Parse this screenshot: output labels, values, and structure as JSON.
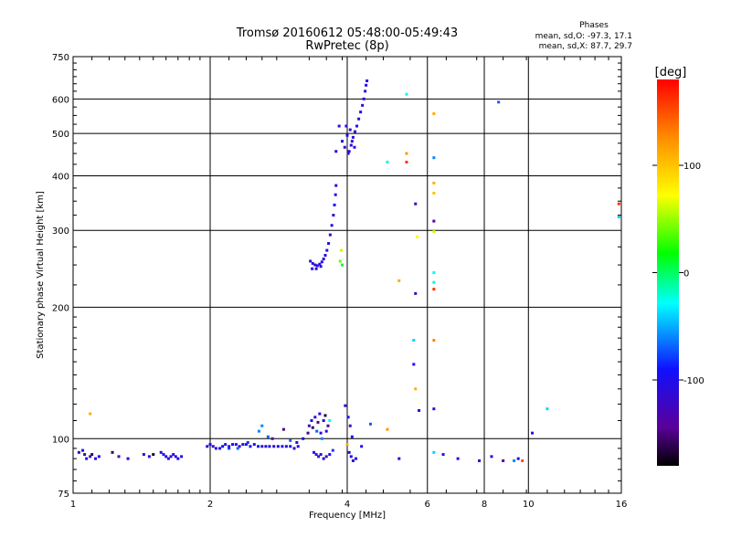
{
  "chart_data": {
    "type": "scatter",
    "title": "Tromsø 20160612 05:48:00-05:49:43",
    "subtitle": "RwPretec (8p)",
    "xlabel": "Frequency [MHz]",
    "ylabel": "Stationary phase Virtual Height [km]",
    "x_scale": "log",
    "y_scale": "log",
    "xlim": [
      1,
      16
    ],
    "ylim": [
      75,
      750
    ],
    "grid": true,
    "x_ticks": [
      "1",
      "2",
      "4",
      "6",
      "8",
      "10",
      "16"
    ],
    "x_tick_values": [
      1,
      2,
      4,
      6,
      8,
      10,
      16
    ],
    "y_ticks": [
      "75",
      "100",
      "200",
      "300",
      "400",
      "500",
      "600",
      "750"
    ],
    "y_tick_values": [
      75,
      100,
      200,
      300,
      400,
      500,
      600,
      750
    ],
    "stats": {
      "title": "Phases",
      "o_line": "mean, sd,O: -97.3, 17.1",
      "x_line": "mean, sd,X:  87.7, 29.7"
    },
    "colorbar": {
      "label": "[deg]",
      "min": -180,
      "max": 180,
      "ticks": [
        "100",
        "0",
        "-100"
      ],
      "tick_values": [
        100,
        0,
        -100
      ]
    },
    "points": [
      {
        "f": 1.03,
        "h": 93,
        "c": -110
      },
      {
        "f": 1.05,
        "h": 94,
        "c": -90
      },
      {
        "f": 1.06,
        "h": 92,
        "c": -150
      },
      {
        "f": 1.07,
        "h": 90,
        "c": -100
      },
      {
        "f": 1.09,
        "h": 91,
        "c": -120
      },
      {
        "f": 1.1,
        "h": 92,
        "c": -160
      },
      {
        "f": 1.12,
        "h": 90,
        "c": -110
      },
      {
        "f": 1.14,
        "h": 91,
        "c": -100
      },
      {
        "f": 1.09,
        "h": 114,
        "c": 110
      },
      {
        "f": 1.22,
        "h": 93,
        "c": -160
      },
      {
        "f": 1.26,
        "h": 91,
        "c": -130
      },
      {
        "f": 1.32,
        "h": 90,
        "c": -110
      },
      {
        "f": 1.43,
        "h": 92,
        "c": -120
      },
      {
        "f": 1.47,
        "h": 91,
        "c": -100
      },
      {
        "f": 1.5,
        "h": 92,
        "c": -170
      },
      {
        "f": 1.56,
        "h": 93,
        "c": -110
      },
      {
        "f": 1.58,
        "h": 92,
        "c": -90
      },
      {
        "f": 1.6,
        "h": 91,
        "c": -100
      },
      {
        "f": 1.62,
        "h": 90,
        "c": -120
      },
      {
        "f": 1.64,
        "h": 91,
        "c": -115
      },
      {
        "f": 1.66,
        "h": 92,
        "c": -105
      },
      {
        "f": 1.68,
        "h": 91,
        "c": -110
      },
      {
        "f": 1.7,
        "h": 90,
        "c": -95
      },
      {
        "f": 1.73,
        "h": 91,
        "c": -100
      },
      {
        "f": 1.97,
        "h": 96,
        "c": -110
      },
      {
        "f": 2.0,
        "h": 97,
        "c": -100
      },
      {
        "f": 2.03,
        "h": 96,
        "c": -120
      },
      {
        "f": 2.06,
        "h": 95,
        "c": -110
      },
      {
        "f": 2.1,
        "h": 95,
        "c": -100
      },
      {
        "f": 2.13,
        "h": 96,
        "c": -90
      },
      {
        "f": 2.16,
        "h": 97,
        "c": -110
      },
      {
        "f": 2.2,
        "h": 96,
        "c": -100
      },
      {
        "f": 2.24,
        "h": 97,
        "c": -110
      },
      {
        "f": 2.28,
        "h": 97,
        "c": -105
      },
      {
        "f": 2.32,
        "h": 96,
        "c": -100
      },
      {
        "f": 2.36,
        "h": 97,
        "c": -110
      },
      {
        "f": 2.4,
        "h": 97,
        "c": -100
      },
      {
        "f": 2.45,
        "h": 96,
        "c": -95
      },
      {
        "f": 2.5,
        "h": 97,
        "c": -110
      },
      {
        "f": 2.55,
        "h": 96,
        "c": -100
      },
      {
        "f": 2.6,
        "h": 96,
        "c": -110
      },
      {
        "f": 2.65,
        "h": 96,
        "c": -105
      },
      {
        "f": 2.7,
        "h": 96,
        "c": -100
      },
      {
        "f": 2.76,
        "h": 96,
        "c": -110
      },
      {
        "f": 2.82,
        "h": 96,
        "c": -100
      },
      {
        "f": 2.88,
        "h": 96,
        "c": -95
      },
      {
        "f": 2.94,
        "h": 96,
        "c": -110
      },
      {
        "f": 3.0,
        "h": 96,
        "c": -100
      },
      {
        "f": 3.06,
        "h": 95,
        "c": -110
      },
      {
        "f": 3.12,
        "h": 96,
        "c": -100
      },
      {
        "f": 2.2,
        "h": 95,
        "c": -80
      },
      {
        "f": 2.3,
        "h": 95,
        "c": -70
      },
      {
        "f": 2.42,
        "h": 98,
        "c": -80
      },
      {
        "f": 2.56,
        "h": 104,
        "c": -60
      },
      {
        "f": 2.6,
        "h": 107,
        "c": -60
      },
      {
        "f": 2.68,
        "h": 101,
        "c": -70
      },
      {
        "f": 2.74,
        "h": 100,
        "c": -140
      },
      {
        "f": 2.9,
        "h": 105,
        "c": -150
      },
      {
        "f": 3.0,
        "h": 99,
        "c": -70
      },
      {
        "f": 3.1,
        "h": 98,
        "c": -110
      },
      {
        "f": 3.2,
        "h": 100,
        "c": -90
      },
      {
        "f": 3.28,
        "h": 103,
        "c": -150
      },
      {
        "f": 3.3,
        "h": 107,
        "c": -120
      },
      {
        "f": 3.34,
        "h": 110,
        "c": -100
      },
      {
        "f": 3.36,
        "h": 106,
        "c": -160
      },
      {
        "f": 3.4,
        "h": 112,
        "c": -110
      },
      {
        "f": 3.43,
        "h": 104,
        "c": -70
      },
      {
        "f": 3.45,
        "h": 109,
        "c": -150
      },
      {
        "f": 3.48,
        "h": 114,
        "c": -100
      },
      {
        "f": 3.5,
        "h": 103,
        "c": -120
      },
      {
        "f": 3.52,
        "h": 100,
        "c": -60
      },
      {
        "f": 3.55,
        "h": 110,
        "c": -110
      },
      {
        "f": 3.58,
        "h": 113,
        "c": -170
      },
      {
        "f": 3.6,
        "h": 104,
        "c": -100
      },
      {
        "f": 3.63,
        "h": 107,
        "c": -150
      },
      {
        "f": 3.66,
        "h": 110,
        "c": -30
      },
      {
        "f": 3.38,
        "h": 93,
        "c": -100
      },
      {
        "f": 3.42,
        "h": 92,
        "c": -110
      },
      {
        "f": 3.46,
        "h": 91,
        "c": -120
      },
      {
        "f": 3.5,
        "h": 92,
        "c": -100
      },
      {
        "f": 3.55,
        "h": 90,
        "c": -110
      },
      {
        "f": 3.6,
        "h": 91,
        "c": -140
      },
      {
        "f": 3.66,
        "h": 92,
        "c": -90
      },
      {
        "f": 3.72,
        "h": 94,
        "c": -80
      },
      {
        "f": 3.96,
        "h": 119,
        "c": -110
      },
      {
        "f": 4.02,
        "h": 112,
        "c": -100
      },
      {
        "f": 4.06,
        "h": 107,
        "c": -120
      },
      {
        "f": 4.1,
        "h": 101,
        "c": -100
      },
      {
        "f": 4.04,
        "h": 93,
        "c": -110
      },
      {
        "f": 4.08,
        "h": 91,
        "c": -90
      },
      {
        "f": 4.12,
        "h": 89,
        "c": -120
      },
      {
        "f": 4.18,
        "h": 90,
        "c": -100
      },
      {
        "f": 4.0,
        "h": 97,
        "c": 110
      },
      {
        "f": 4.3,
        "h": 96,
        "c": -100
      },
      {
        "f": 4.5,
        "h": 108,
        "c": -70
      },
      {
        "f": 4.9,
        "h": 105,
        "c": 120
      },
      {
        "f": 5.2,
        "h": 90,
        "c": -110
      },
      {
        "f": 6.2,
        "h": 93,
        "c": -40
      },
      {
        "f": 6.5,
        "h": 92,
        "c": -110
      },
      {
        "f": 7.0,
        "h": 90,
        "c": -100
      },
      {
        "f": 7.8,
        "h": 89,
        "c": -120
      },
      {
        "f": 8.3,
        "h": 91,
        "c": -100
      },
      {
        "f": 8.8,
        "h": 89,
        "c": -130
      },
      {
        "f": 9.3,
        "h": 89,
        "c": -60
      },
      {
        "f": 9.5,
        "h": 90,
        "c": -100
      },
      {
        "f": 9.7,
        "h": 89,
        "c": 150
      },
      {
        "f": 3.32,
        "h": 255,
        "c": -110
      },
      {
        "f": 3.36,
        "h": 252,
        "c": -100
      },
      {
        "f": 3.4,
        "h": 250,
        "c": -120
      },
      {
        "f": 3.44,
        "h": 249,
        "c": -100
      },
      {
        "f": 3.48,
        "h": 251,
        "c": -110
      },
      {
        "f": 3.52,
        "h": 254,
        "c": -100
      },
      {
        "f": 3.55,
        "h": 258,
        "c": -110
      },
      {
        "f": 3.58,
        "h": 263,
        "c": -100
      },
      {
        "f": 3.61,
        "h": 270,
        "c": -110
      },
      {
        "f": 3.64,
        "h": 280,
        "c": -100
      },
      {
        "f": 3.67,
        "h": 293,
        "c": -120
      },
      {
        "f": 3.7,
        "h": 308,
        "c": -100
      },
      {
        "f": 3.73,
        "h": 325,
        "c": -110
      },
      {
        "f": 3.75,
        "h": 343,
        "c": -100
      },
      {
        "f": 3.77,
        "h": 362,
        "c": -110
      },
      {
        "f": 3.78,
        "h": 380,
        "c": -100
      },
      {
        "f": 3.35,
        "h": 245,
        "c": -105
      },
      {
        "f": 3.42,
        "h": 245,
        "c": -115
      },
      {
        "f": 3.5,
        "h": 248,
        "c": -105
      },
      {
        "f": 3.88,
        "h": 270,
        "c": 60
      },
      {
        "f": 3.86,
        "h": 255,
        "c": 40
      },
      {
        "f": 3.9,
        "h": 250,
        "c": 10
      },
      {
        "f": 3.78,
        "h": 455,
        "c": -110
      },
      {
        "f": 3.84,
        "h": 520,
        "c": -120
      },
      {
        "f": 3.9,
        "h": 480,
        "c": -100
      },
      {
        "f": 3.95,
        "h": 465,
        "c": -110
      },
      {
        "f": 4.0,
        "h": 495,
        "c": -100
      },
      {
        "f": 4.04,
        "h": 455,
        "c": -110
      },
      {
        "f": 4.08,
        "h": 470,
        "c": -100
      },
      {
        "f": 4.12,
        "h": 490,
        "c": -110
      },
      {
        "f": 4.16,
        "h": 505,
        "c": -120
      },
      {
        "f": 4.2,
        "h": 520,
        "c": -100
      },
      {
        "f": 4.24,
        "h": 540,
        "c": -110
      },
      {
        "f": 4.28,
        "h": 560,
        "c": -100
      },
      {
        "f": 4.32,
        "h": 580,
        "c": -110
      },
      {
        "f": 4.35,
        "h": 600,
        "c": -100
      },
      {
        "f": 4.38,
        "h": 625,
        "c": -110
      },
      {
        "f": 4.4,
        "h": 645,
        "c": -100
      },
      {
        "f": 4.42,
        "h": 660,
        "c": -110
      },
      {
        "f": 3.98,
        "h": 520,
        "c": -105
      },
      {
        "f": 4.06,
        "h": 510,
        "c": -115
      },
      {
        "f": 4.1,
        "h": 480,
        "c": -105
      },
      {
        "f": 4.02,
        "h": 450,
        "c": -115
      },
      {
        "f": 4.15,
        "h": 465,
        "c": -105
      },
      {
        "f": 4.9,
        "h": 430,
        "c": -20
      },
      {
        "f": 5.2,
        "h": 230,
        "c": 110
      },
      {
        "f": 5.4,
        "h": 450,
        "c": 120
      },
      {
        "f": 5.4,
        "h": 430,
        "c": 160
      },
      {
        "f": 5.4,
        "h": 615,
        "c": -30
      },
      {
        "f": 5.65,
        "h": 345,
        "c": -110
      },
      {
        "f": 5.65,
        "h": 215,
        "c": -120
      },
      {
        "f": 5.7,
        "h": 290,
        "c": 70
      },
      {
        "f": 5.6,
        "h": 168,
        "c": -40
      },
      {
        "f": 5.6,
        "h": 148,
        "c": -100
      },
      {
        "f": 5.65,
        "h": 130,
        "c": 110
      },
      {
        "f": 5.75,
        "h": 116,
        "c": -110
      },
      {
        "f": 6.2,
        "h": 555,
        "c": 110
      },
      {
        "f": 6.2,
        "h": 440,
        "c": -60
      },
      {
        "f": 6.2,
        "h": 385,
        "c": 110
      },
      {
        "f": 6.2,
        "h": 365,
        "c": 100
      },
      {
        "f": 6.2,
        "h": 315,
        "c": -140
      },
      {
        "f": 6.2,
        "h": 298,
        "c": 60
      },
      {
        "f": 6.2,
        "h": 240,
        "c": -30
      },
      {
        "f": 6.2,
        "h": 228,
        "c": -20
      },
      {
        "f": 6.2,
        "h": 220,
        "c": 160
      },
      {
        "f": 6.2,
        "h": 168,
        "c": 130
      },
      {
        "f": 6.2,
        "h": 117,
        "c": -110
      },
      {
        "f": 8.6,
        "h": 590,
        "c": -70
      },
      {
        "f": 10.2,
        "h": 103,
        "c": -100
      },
      {
        "f": 11.0,
        "h": 117,
        "c": -40
      },
      {
        "f": 15.8,
        "h": 345,
        "c": 160
      },
      {
        "f": 15.8,
        "h": 322,
        "c": -40
      }
    ]
  }
}
